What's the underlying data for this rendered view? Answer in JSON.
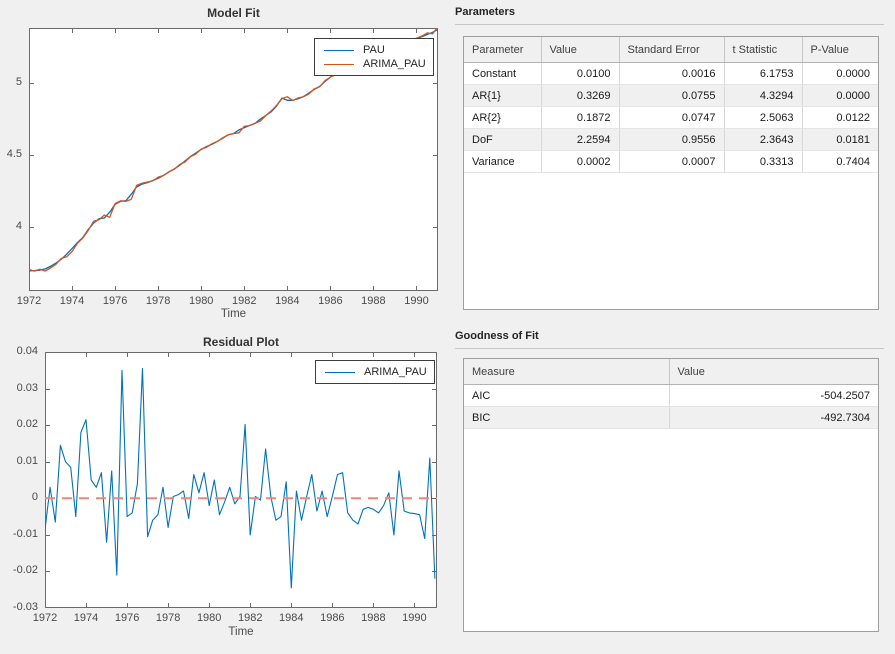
{
  "app_background": "#f0f0f0",
  "colors": {
    "pau_line": "#0072BD",
    "arima_line": "#D95319",
    "zero_line": "#F2837B",
    "axis": "#6b6b6b",
    "tick_text": "#4a4a4a"
  },
  "parameters_panel": {
    "title": "Parameters",
    "table": {
      "columns": [
        "Parameter",
        "Value",
        "Standard Error",
        "t Statistic",
        "P-Value"
      ],
      "rows": [
        [
          "Constant",
          "0.0100",
          "0.0016",
          "6.1753",
          "0.0000"
        ],
        [
          "AR{1}",
          "0.3269",
          "0.0755",
          "4.3294",
          "0.0000"
        ],
        [
          "AR{2}",
          "0.1872",
          "0.0747",
          "2.5063",
          "0.0122"
        ],
        [
          "DoF",
          "2.2594",
          "0.9556",
          "2.3643",
          "0.0181"
        ],
        [
          "Variance",
          "0.0002",
          "0.0007",
          "0.3313",
          "0.7404"
        ]
      ]
    }
  },
  "goodness_panel": {
    "title": "Goodness of Fit",
    "table": {
      "columns": [
        "Measure",
        "Value"
      ],
      "rows": [
        [
          "AIC",
          "-504.2507"
        ],
        [
          "BIC",
          "-492.7304"
        ]
      ]
    }
  },
  "chart_data": {
    "charts": [
      {
        "type": "line",
        "title": "Model Fit",
        "xlabel": "Time",
        "x": {
          "start": 1972,
          "step": 0.25,
          "count": 77
        },
        "xlim": [
          1972,
          1991
        ],
        "ylim": [
          3.56,
          5.38
        ],
        "xticks": [
          1972,
          1974,
          1976,
          1978,
          1980,
          1982,
          1984,
          1986,
          1988,
          1990
        ],
        "yticks": [
          4,
          4.5,
          5
        ],
        "ytick_labels": [
          "4",
          "4.5",
          "5"
        ],
        "legend_position": "top-right",
        "grid": false,
        "series": [
          {
            "name": "PAU",
            "color": "#0072BD",
            "values": [
              3.7,
              3.701,
              3.704,
              3.713,
              3.73,
              3.753,
              3.78,
              3.815,
              3.855,
              3.895,
              3.93,
              3.985,
              4.03,
              4.06,
              4.065,
              4.105,
              4.16,
              4.18,
              4.185,
              4.23,
              4.28,
              4.3,
              4.31,
              4.325,
              4.34,
              4.36,
              4.385,
              4.405,
              4.43,
              4.46,
              4.49,
              4.515,
              4.54,
              4.56,
              4.575,
              4.595,
              4.62,
              4.64,
              4.65,
              4.675,
              4.69,
              4.705,
              4.72,
              4.75,
              4.775,
              4.8,
              4.84,
              4.895,
              4.88,
              4.88,
              4.89,
              4.905,
              4.93,
              4.955,
              4.975,
              5.01,
              5.04,
              5.065,
              5.085,
              5.105,
              5.12,
              5.14,
              5.15,
              5.16,
              5.175,
              5.195,
              5.215,
              5.235,
              5.255,
              5.27,
              5.285,
              5.295,
              5.305,
              5.32,
              5.335,
              5.35,
              5.37
            ]
          },
          {
            "name": "ARIMA_PAU",
            "color": "#D95319",
            "derive": "pau_minus_residuals"
          }
        ]
      },
      {
        "type": "line",
        "title": "Residual Plot",
        "xlabel": "Time",
        "x": {
          "start": 1972,
          "step": 0.25,
          "count": 77
        },
        "xlim": [
          1972,
          1991.1
        ],
        "ylim": [
          -0.03,
          0.04
        ],
        "xticks": [
          1972,
          1974,
          1976,
          1978,
          1980,
          1982,
          1984,
          1986,
          1988,
          1990
        ],
        "yticks": [
          -0.03,
          -0.02,
          -0.01,
          0,
          0.01,
          0.02,
          0.03,
          0.04
        ],
        "ytick_labels": [
          "-0.03",
          "-0.02",
          "-0.01",
          "0",
          "0.01",
          "0.02",
          "0.03",
          "0.04"
        ],
        "legend_position": "top-right",
        "grid": false,
        "zero_line": {
          "y": 0,
          "color": "#F2837B",
          "style": "dashed"
        },
        "series": [
          {
            "name": "ARIMA_PAU",
            "color": "#0072BD",
            "values": [
              -0.0085,
              0.003,
              -0.0065,
              0.0145,
              0.01,
              0.0085,
              -0.005,
              0.018,
              0.0215,
              0.005,
              0.003,
              0.007,
              -0.012,
              0.0075,
              -0.021,
              0.035,
              -0.005,
              -0.004,
              0.004,
              0.0355,
              -0.0105,
              -0.006,
              -0.0045,
              0.003,
              -0.008,
              0.0005,
              0.001,
              0.002,
              -0.0055,
              0.0065,
              0.0015,
              0.007,
              -0.002,
              0.005,
              -0.0045,
              -0.001,
              0.003,
              -0.0015,
              0.0005,
              0.0202,
              -0.01,
              0.0005,
              -0.0005,
              0.0135,
              0.0005,
              -0.006,
              -0.005,
              0.0045,
              -0.0245,
              0.002,
              -0.006,
              0.0005,
              0.0065,
              -0.0035,
              0.002,
              -0.005,
              0.0005,
              0.0065,
              0.007,
              -0.004,
              -0.006,
              -0.007,
              -0.003,
              -0.0025,
              -0.003,
              -0.004,
              -0.002,
              0.0015,
              -0.01,
              0.0075,
              -0.0035,
              -0.004,
              -0.0042,
              -0.0045,
              -0.011,
              0.011,
              -0.022
            ]
          }
        ]
      }
    ]
  }
}
